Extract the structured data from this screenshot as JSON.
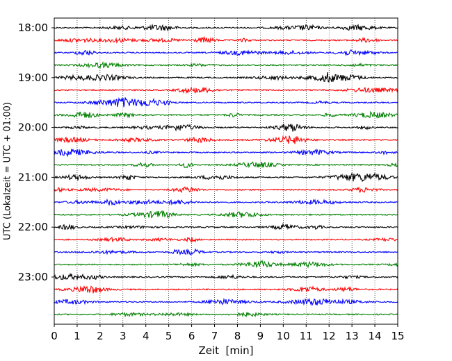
{
  "chart_data": {
    "type": "line",
    "title": "",
    "xlabel": "Zeit  [min]",
    "ylabel": "UTC (Lokalzeit = UTC + 01:00)",
    "xlim": [
      0,
      15
    ],
    "x_ticks": [
      0,
      1,
      2,
      3,
      4,
      5,
      6,
      7,
      8,
      9,
      10,
      11,
      12,
      13,
      14,
      15
    ],
    "x_tick_labels": [
      "0",
      "1",
      "2",
      "3",
      "4",
      "5",
      "6",
      "7",
      "8",
      "9",
      "10",
      "11",
      "12",
      "13",
      "14",
      "15"
    ],
    "y_tick_labels": [
      "18:00",
      "19:00",
      "20:00",
      "21:00",
      "22:00",
      "23:00"
    ],
    "trace_interval_min": 15,
    "start_time": "18:00",
    "trace_count": 24,
    "trace_colors": [
      "#000000",
      "#ff0000",
      "#0000ff",
      "#008000"
    ],
    "grid": {
      "x": true,
      "y": false,
      "style": "dotted"
    }
  }
}
